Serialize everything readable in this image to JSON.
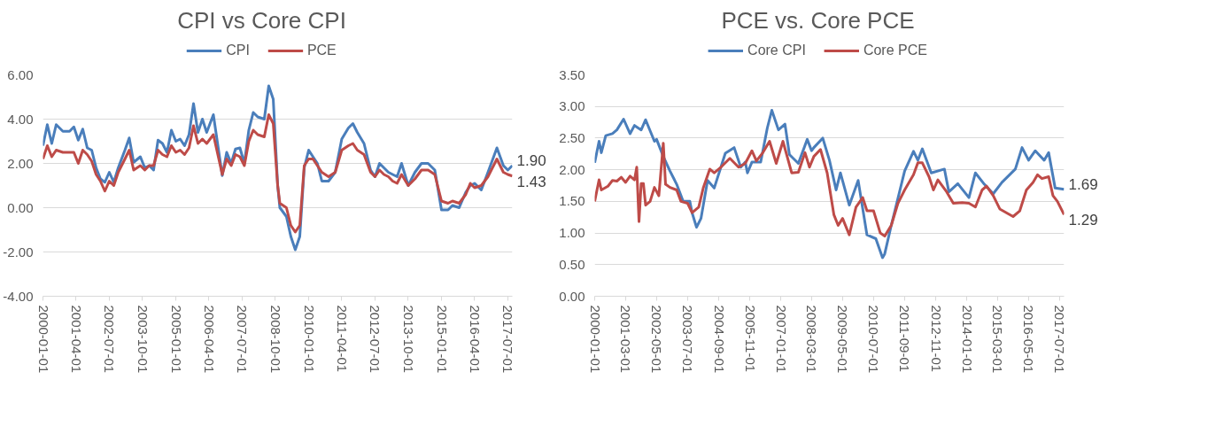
{
  "chart_data": [
    {
      "type": "line",
      "title": "CPI vs Core CPI",
      "legend": "top",
      "grid": "y",
      "line_style": "solid",
      "x": [
        "2000-01",
        "2000-03",
        "2000-05",
        "2000-07",
        "2000-10",
        "2001-01",
        "2001-03",
        "2001-05",
        "2001-07",
        "2001-09",
        "2001-11",
        "2002-01",
        "2002-03",
        "2002-05",
        "2002-07",
        "2002-09",
        "2002-11",
        "2003-02",
        "2003-04",
        "2003-06",
        "2003-09",
        "2003-11",
        "2004-01",
        "2004-03",
        "2004-05",
        "2004-07",
        "2004-09",
        "2004-11",
        "2005-01",
        "2005-03",
        "2005-05",
        "2005-07",
        "2005-09",
        "2005-11",
        "2006-01",
        "2006-03",
        "2006-06",
        "2006-10",
        "2006-12",
        "2007-02",
        "2007-04",
        "2007-06",
        "2007-08",
        "2007-10",
        "2007-12",
        "2008-02",
        "2008-05",
        "2008-07",
        "2008-09",
        "2008-11",
        "2008-12",
        "2009-03",
        "2009-05",
        "2009-07",
        "2009-09",
        "2009-11",
        "2010-01",
        "2010-03",
        "2010-05",
        "2010-07",
        "2010-10",
        "2011-01",
        "2011-04",
        "2011-07",
        "2011-09",
        "2011-11",
        "2012-02",
        "2012-05",
        "2012-07",
        "2012-09",
        "2012-11",
        "2013-01",
        "2013-03",
        "2013-05",
        "2013-07",
        "2013-10",
        "2014-01",
        "2014-04",
        "2014-07",
        "2014-10",
        "2015-01",
        "2015-04",
        "2015-06",
        "2015-09",
        "2015-12",
        "2016-02",
        "2016-04",
        "2016-07",
        "2016-10",
        "2017-02",
        "2017-05",
        "2017-07",
        "2017-09"
      ],
      "series": [
        {
          "name": "CPI",
          "color": "#4a7ebb",
          "values": [
            2.8,
            3.75,
            2.9,
            3.75,
            3.45,
            3.45,
            3.65,
            3.05,
            3.55,
            2.7,
            2.6,
            1.8,
            1.3,
            1.15,
            1.6,
            1.15,
            1.8,
            2.6,
            3.15,
            2.05,
            2.3,
            1.8,
            1.9,
            1.7,
            3.05,
            2.9,
            2.5,
            3.5,
            3.0,
            3.1,
            2.8,
            3.3,
            4.7,
            3.4,
            4.0,
            3.4,
            4.2,
            1.45,
            2.5,
            2.0,
            2.65,
            2.7,
            2.0,
            3.5,
            4.3,
            4.1,
            4.0,
            5.5,
            4.9,
            1.0,
            0.0,
            -0.4,
            -1.3,
            -1.9,
            -1.3,
            1.8,
            2.6,
            2.3,
            2.0,
            1.2,
            1.2,
            1.6,
            3.1,
            3.6,
            3.8,
            3.4,
            2.9,
            1.7,
            1.4,
            2.0,
            1.8,
            1.6,
            1.5,
            1.4,
            2.0,
            1.0,
            1.6,
            2.0,
            2.0,
            1.7,
            -0.1,
            -0.1,
            0.1,
            0.0,
            0.7,
            1.0,
            1.1,
            0.8,
            1.6,
            2.7,
            1.9,
            1.7,
            1.9
          ]
        },
        {
          "name": "PCE",
          "color": "#be4b48",
          "values": [
            2.2,
            2.8,
            2.3,
            2.6,
            2.5,
            2.5,
            2.5,
            2.0,
            2.6,
            2.4,
            2.1,
            1.5,
            1.2,
            0.75,
            1.2,
            1.0,
            1.6,
            2.2,
            2.6,
            1.7,
            1.9,
            1.7,
            1.9,
            1.9,
            2.6,
            2.4,
            2.3,
            2.8,
            2.5,
            2.6,
            2.4,
            2.7,
            3.7,
            2.9,
            3.1,
            2.9,
            3.3,
            1.5,
            2.2,
            1.9,
            2.4,
            2.3,
            1.9,
            3.0,
            3.5,
            3.3,
            3.2,
            4.2,
            3.8,
            1.0,
            0.2,
            0.0,
            -0.8,
            -1.1,
            -0.8,
            1.9,
            2.2,
            2.2,
            1.9,
            1.6,
            1.4,
            1.6,
            2.6,
            2.8,
            2.9,
            2.6,
            2.4,
            1.6,
            1.4,
            1.7,
            1.5,
            1.4,
            1.2,
            1.1,
            1.5,
            1.0,
            1.3,
            1.7,
            1.7,
            1.5,
            0.3,
            0.2,
            0.3,
            0.2,
            0.6,
            1.1,
            0.9,
            1.0,
            1.4,
            2.2,
            1.6,
            1.5,
            1.43
          ]
        }
      ],
      "xlim": [
        "2000-01",
        "2017-09"
      ],
      "xticks": [
        "2000-01-01",
        "2001-04-01",
        "2002-07-01",
        "2003-10-01",
        "2005-01-01",
        "2006-04-01",
        "2007-07-01",
        "2008-10-01",
        "2010-01-01",
        "2011-04-01",
        "2012-07-01",
        "2013-10-01",
        "2015-01-01",
        "2016-04-01",
        "2017-07-01"
      ],
      "ylim": [
        -4,
        6
      ],
      "yticks": [
        {
          "value": -4,
          "label": "-4.00"
        },
        {
          "value": -2,
          "label": "-2.00"
        },
        {
          "value": 0,
          "label": "0.00"
        },
        {
          "value": 2,
          "label": "2.00"
        },
        {
          "value": 4,
          "label": "4.00"
        },
        {
          "value": 6,
          "label": "6.00"
        }
      ],
      "annotations": [
        {
          "text": "1.90",
          "x": "2017-09",
          "y": 1.9
        },
        {
          "text": "1.43",
          "x": "2017-09",
          "y": 1.43
        }
      ]
    },
    {
      "type": "line",
      "title": "PCE vs. Core PCE",
      "legend": "top",
      "grid": "y",
      "line_style": "solid",
      "series": [
        {
          "name": "Core CPI",
          "color": "#4a7ebb",
          "x": [
            "2000-01",
            "2000-03",
            "2000-04",
            "2000-06",
            "2000-09",
            "2000-11",
            "2001-02",
            "2001-05",
            "2001-07",
            "2001-10",
            "2001-12",
            "2002-04",
            "2002-05",
            "2002-08",
            "2002-11",
            "2003-02",
            "2003-05",
            "2003-08",
            "2003-09",
            "2003-11",
            "2004-01",
            "2004-04",
            "2004-07",
            "2004-12",
            "2005-04",
            "2005-07",
            "2005-09",
            "2005-10",
            "2005-12",
            "2006-04",
            "2006-07",
            "2006-09",
            "2006-12",
            "2007-03",
            "2007-05",
            "2007-09",
            "2008-01",
            "2008-03",
            "2008-04",
            "2008-08",
            "2008-11",
            "2009-02",
            "2009-04",
            "2009-08",
            "2009-12",
            "2010-04",
            "2010-08",
            "2010-11",
            "2010-12",
            "2011-03",
            "2011-09",
            "2012-01",
            "2012-03",
            "2012-05",
            "2012-09",
            "2013-03",
            "2013-05",
            "2013-09",
            "2014-02",
            "2014-05",
            "2014-09",
            "2015-01",
            "2015-05",
            "2015-11",
            "2016-02",
            "2016-05",
            "2016-08",
            "2016-12",
            "2017-02",
            "2017-05",
            "2017-09"
          ],
          "values": [
            2.11,
            2.45,
            2.27,
            2.54,
            2.57,
            2.63,
            2.8,
            2.57,
            2.7,
            2.63,
            2.79,
            2.45,
            2.48,
            2.21,
            1.98,
            1.77,
            1.5,
            1.5,
            1.32,
            1.09,
            1.23,
            1.83,
            1.71,
            2.26,
            2.35,
            2.04,
            2.12,
            1.95,
            2.12,
            2.12,
            2.66,
            2.94,
            2.63,
            2.72,
            2.24,
            2.1,
            2.48,
            2.3,
            2.35,
            2.5,
            2.15,
            1.68,
            1.95,
            1.44,
            1.83,
            0.97,
            0.91,
            0.61,
            0.67,
            1.12,
            1.98,
            2.29,
            2.15,
            2.33,
            1.95,
            2.01,
            1.65,
            1.78,
            1.56,
            1.95,
            1.77,
            1.62,
            1.8,
            2.01,
            2.35,
            2.15,
            2.3,
            2.15,
            2.27,
            1.71,
            1.69
          ]
        },
        {
          "name": "Core PCE",
          "color": "#be4b48",
          "x": [
            "2000-01",
            "2000-03",
            "2000-04",
            "2000-07",
            "2000-09",
            "2000-11",
            "2001-01",
            "2001-03",
            "2001-05",
            "2001-07",
            "2001-08",
            "2001-09",
            "2001-10",
            "2001-11",
            "2001-12",
            "2002-02",
            "2002-04",
            "2002-06",
            "2002-08",
            "2002-09",
            "2002-11",
            "2003-02",
            "2003-04",
            "2003-07",
            "2003-09",
            "2003-12",
            "2004-02",
            "2004-05",
            "2004-07",
            "2004-10",
            "2005-02",
            "2005-06",
            "2005-09",
            "2005-12",
            "2006-02",
            "2006-05",
            "2006-08",
            "2006-11",
            "2007-02",
            "2007-06",
            "2007-09",
            "2007-12",
            "2008-02",
            "2008-04",
            "2008-07",
            "2008-10",
            "2009-01",
            "2009-03",
            "2009-05",
            "2009-08",
            "2009-11",
            "2010-02",
            "2010-04",
            "2010-07",
            "2010-10",
            "2010-12",
            "2011-03",
            "2011-06",
            "2011-09",
            "2012-01",
            "2012-03",
            "2012-05",
            "2012-08",
            "2012-10",
            "2012-12",
            "2013-04",
            "2013-07",
            "2013-11",
            "2014-02",
            "2014-05",
            "2014-08",
            "2014-10",
            "2015-01",
            "2015-04",
            "2015-07",
            "2015-10",
            "2016-01",
            "2016-04",
            "2016-07",
            "2016-09",
            "2016-11",
            "2017-02",
            "2017-04",
            "2017-06",
            "2017-09"
          ],
          "values": [
            1.5,
            1.84,
            1.68,
            1.74,
            1.83,
            1.82,
            1.88,
            1.8,
            1.9,
            1.84,
            2.04,
            1.18,
            1.78,
            1.78,
            1.44,
            1.5,
            1.72,
            1.59,
            2.42,
            1.77,
            1.72,
            1.68,
            1.5,
            1.47,
            1.32,
            1.41,
            1.71,
            2.01,
            1.95,
            2.04,
            2.18,
            2.04,
            2.1,
            2.3,
            2.14,
            2.27,
            2.45,
            2.1,
            2.45,
            1.95,
            1.96,
            2.27,
            2.04,
            2.21,
            2.32,
            1.95,
            1.29,
            1.12,
            1.23,
            0.97,
            1.41,
            1.56,
            1.35,
            1.35,
            1.0,
            0.95,
            1.12,
            1.47,
            1.68,
            1.92,
            2.11,
            2.11,
            1.89,
            1.68,
            1.84,
            1.65,
            1.47,
            1.48,
            1.47,
            1.41,
            1.68,
            1.74,
            1.59,
            1.38,
            1.32,
            1.26,
            1.35,
            1.68,
            1.8,
            1.92,
            1.86,
            1.89,
            1.59,
            1.5,
            1.29
          ]
        }
      ],
      "xlim": [
        "2000-01",
        "2017-09"
      ],
      "xticks": [
        "2000-01-01",
        "2001-03-01",
        "2002-05-01",
        "2003-07-01",
        "2004-09-01",
        "2005-11-01",
        "2007-01-01",
        "2008-03-01",
        "2009-05-01",
        "2010-07-01",
        "2011-09-01",
        "2012-11-01",
        "2014-01-01",
        "2015-03-01",
        "2016-05-01",
        "2017-07-01"
      ],
      "ylim": [
        0,
        3.5
      ],
      "yticks": [
        {
          "value": 0,
          "label": "0.00"
        },
        {
          "value": 0.5,
          "label": "0.50"
        },
        {
          "value": 1,
          "label": "1.00"
        },
        {
          "value": 1.5,
          "label": "1.50"
        },
        {
          "value": 2,
          "label": "2.00"
        },
        {
          "value": 2.5,
          "label": "2.50"
        },
        {
          "value": 3,
          "label": "3.00"
        },
        {
          "value": 3.5,
          "label": "3.50"
        }
      ],
      "annotations": [
        {
          "text": "1.69",
          "x": "2017-09",
          "y": 1.69
        },
        {
          "text": "1.29",
          "x": "2017-09",
          "y": 1.29
        }
      ]
    }
  ]
}
